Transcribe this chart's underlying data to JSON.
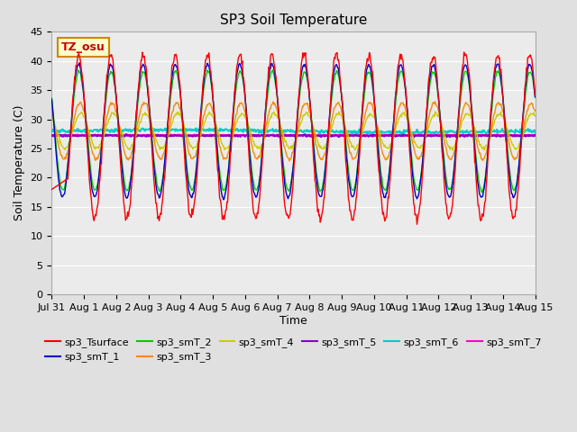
{
  "title": "SP3 Soil Temperature",
  "ylabel": "Soil Temperature (C)",
  "xlabel": "Time",
  "ylim": [
    0,
    45
  ],
  "yticks": [
    0,
    5,
    10,
    15,
    20,
    25,
    30,
    35,
    40,
    45
  ],
  "date_labels": [
    "Jul 31",
    "Aug 1",
    "Aug 2",
    "Aug 3",
    "Aug 4",
    "Aug 5",
    "Aug 6",
    "Aug 7",
    "Aug 8",
    "Aug 9",
    "Aug 10",
    "Aug 11",
    "Aug 12",
    "Aug 13",
    "Aug 14",
    "Aug 15"
  ],
  "bg_color": "#e0e0e0",
  "plot_bg_color": "#ebebeb",
  "legend_entries": [
    "sp3_Tsurface",
    "sp3_smT_1",
    "sp3_smT_2",
    "sp3_smT_3",
    "sp3_smT_4",
    "sp3_smT_5",
    "sp3_smT_6",
    "sp3_smT_7"
  ],
  "line_colors": [
    "#ff0000",
    "#0000cc",
    "#00cc00",
    "#ff8800",
    "#cccc00",
    "#8800cc",
    "#00cccc",
    "#ff00cc"
  ],
  "tz_label": "TZ_osu",
  "tz_bg": "#ffffcc",
  "tz_border": "#cc8800"
}
